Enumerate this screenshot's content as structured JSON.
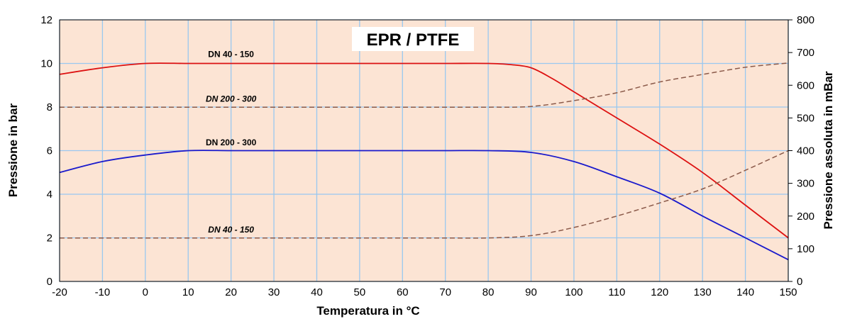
{
  "chart_data": {
    "type": "line",
    "title": "EPR / PTFE",
    "xlabel": "Temperatura in °C",
    "ylabel": "Pressione in bar",
    "y2label": "Pressione assoluta in mBar",
    "xlim": [
      -20,
      150
    ],
    "ylim": [
      0,
      12
    ],
    "y2lim": [
      0,
      800
    ],
    "x_ticks": [
      "-20",
      "-10",
      "0",
      "10",
      "20",
      "30",
      "40",
      "50",
      "60",
      "70",
      "80",
      "90",
      "100",
      "110",
      "120",
      "130",
      "140",
      "150"
    ],
    "y_ticks": [
      "0",
      "2",
      "4",
      "6",
      "8",
      "10",
      "12"
    ],
    "y2_ticks": [
      "0",
      "100",
      "200",
      "300",
      "400",
      "500",
      "600",
      "700",
      "800"
    ],
    "grid": true,
    "colors": {
      "plot_bg": "#fce4d4",
      "grid": "#99c8f0",
      "red": "#dd1111",
      "blue": "#1a1acc",
      "dashed": "#8b5a4a"
    },
    "series": [
      {
        "axis": "left",
        "color": "#dd1111",
        "style": "solid",
        "x": [
          -20,
          -10,
          0,
          10,
          20,
          30,
          40,
          50,
          60,
          70,
          80,
          85,
          90,
          95,
          100,
          110,
          120,
          130,
          140,
          150
        ],
        "y": [
          9.5,
          9.8,
          10,
          10,
          10,
          10,
          10,
          10,
          10,
          10,
          10,
          9.95,
          9.8,
          9.3,
          8.7,
          7.5,
          6.3,
          5.0,
          3.5,
          2.0
        ]
      },
      {
        "axis": "left",
        "color": "#1a1acc",
        "style": "solid",
        "x": [
          -20,
          -10,
          0,
          10,
          20,
          30,
          40,
          50,
          60,
          70,
          80,
          90,
          100,
          110,
          120,
          130,
          140,
          150
        ],
        "y": [
          5.0,
          5.5,
          5.8,
          6.0,
          6.0,
          6.0,
          6.0,
          6.0,
          6.0,
          6.0,
          6.0,
          5.92,
          5.5,
          4.8,
          4.05,
          3.0,
          2.0,
          1.0
        ]
      },
      {
        "axis": "right",
        "color": "#8b5a4a",
        "style": "dashed",
        "x": [
          -20,
          -10,
          0,
          10,
          20,
          30,
          40,
          50,
          60,
          70,
          80,
          90,
          100,
          110,
          120,
          130,
          140,
          150
        ],
        "y": [
          533,
          533,
          533,
          533,
          533,
          533,
          533,
          533,
          533,
          533,
          533,
          535,
          553,
          577,
          610,
          633,
          655,
          668
        ]
      },
      {
        "axis": "right",
        "color": "#8b5a4a",
        "style": "dashed",
        "x": [
          -20,
          -10,
          0,
          10,
          20,
          30,
          40,
          50,
          60,
          70,
          80,
          90,
          100,
          110,
          120,
          130,
          140,
          150
        ],
        "y": [
          133,
          133,
          133,
          133,
          133,
          133,
          133,
          133,
          133,
          133,
          133,
          140,
          165,
          200,
          240,
          283,
          340,
          400
        ]
      }
    ],
    "annotations": [
      {
        "text": "DN 40 - 150",
        "x": 20,
        "y": 10.3,
        "italic": false
      },
      {
        "text": "DN 200 - 300",
        "x": 20,
        "y": 8.25,
        "italic": true
      },
      {
        "text": "DN 200  -  300",
        "x": 20,
        "y": 6.25,
        "italic": false
      },
      {
        "text": "DN 40 - 150",
        "x": 20,
        "y": 2.25,
        "italic": true
      }
    ]
  }
}
